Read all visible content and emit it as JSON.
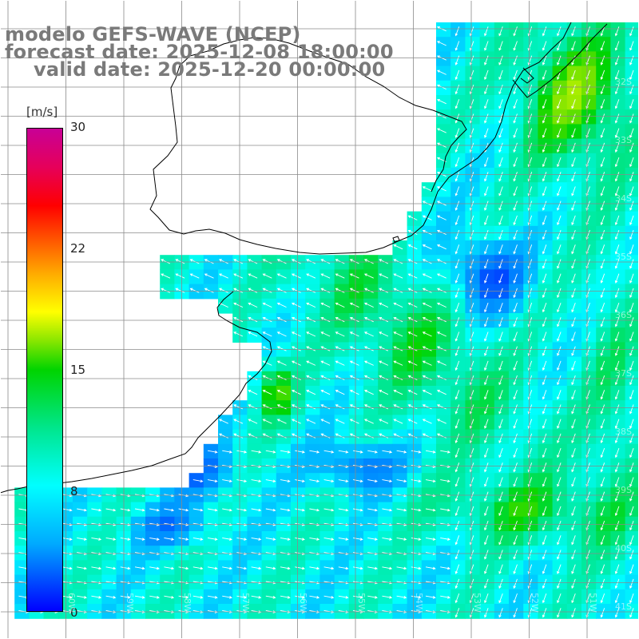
{
  "header": {
    "line1": "modelo GEFS-WAVE (NCEP)",
    "line2": "forecast date: 2025-12-08 18:00:00",
    "line3": "valid date: 2025-12-20 00:00:00"
  },
  "legend": {
    "unit": "[m/s]",
    "min": 0,
    "max": 30,
    "ticks": [
      "30",
      "22",
      "15",
      "8",
      "0"
    ],
    "colors": [
      "#0000ff",
      "#00aaff",
      "#00ffff",
      "#00d400",
      "#ffff00",
      "#ff5500",
      "#ff0000",
      "#c80096"
    ]
  },
  "grid": {
    "lat_labels": [
      "32S",
      "33S",
      "34S",
      "35S",
      "36S",
      "37S",
      "38S",
      "39S",
      "40S",
      "41S"
    ],
    "lon_labels": [
      "60W",
      "59W",
      "58W",
      "57W",
      "56W",
      "55W",
      "54W",
      "53W",
      "52W",
      "51W"
    ]
  },
  "colors": {
    "land": "#ffffff",
    "coast": "#000000",
    "grid": "#888888",
    "arrows": "#ffffff",
    "title": "#7a7a7a"
  }
}
